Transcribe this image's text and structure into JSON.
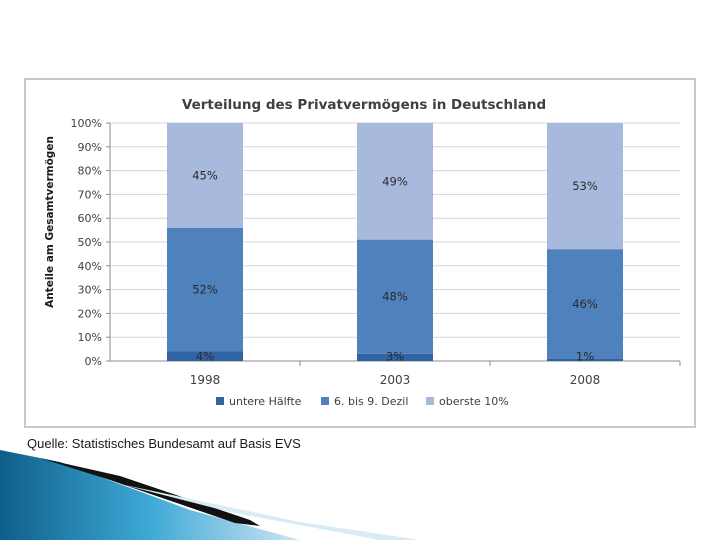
{
  "chart_data": {
    "type": "bar",
    "stacked": true,
    "title": "Verteilung des Privatvermögens in Deutschland",
    "ylabel": "Anteile am Gesamtvermögen",
    "xlabel": "",
    "categories": [
      "1998",
      "2003",
      "2008"
    ],
    "ylim": [
      0,
      100
    ],
    "yticks": [
      "0%",
      "10%",
      "20%",
      "30%",
      "40%",
      "50%",
      "60%",
      "70%",
      "80%",
      "90%",
      "100%"
    ],
    "grid": true,
    "legend_position": "bottom",
    "series": [
      {
        "name": "untere Hälfte",
        "values": [
          4,
          3,
          1
        ],
        "labels": [
          "4%",
          "3%",
          "1%"
        ],
        "color": "#2f63a3"
      },
      {
        "name": "6. bis 9. Dezil",
        "values": [
          52,
          48,
          46
        ],
        "labels": [
          "52%",
          "48%",
          "46%"
        ],
        "color": "#4f81bd"
      },
      {
        "name": "oberste 10%",
        "values": [
          45,
          49,
          53
        ],
        "labels": [
          "45%",
          "49%",
          "53%"
        ],
        "color": "#a7b9dc"
      }
    ]
  },
  "source": "Quelle: Statistisches Bundesamt auf Basis EVS"
}
